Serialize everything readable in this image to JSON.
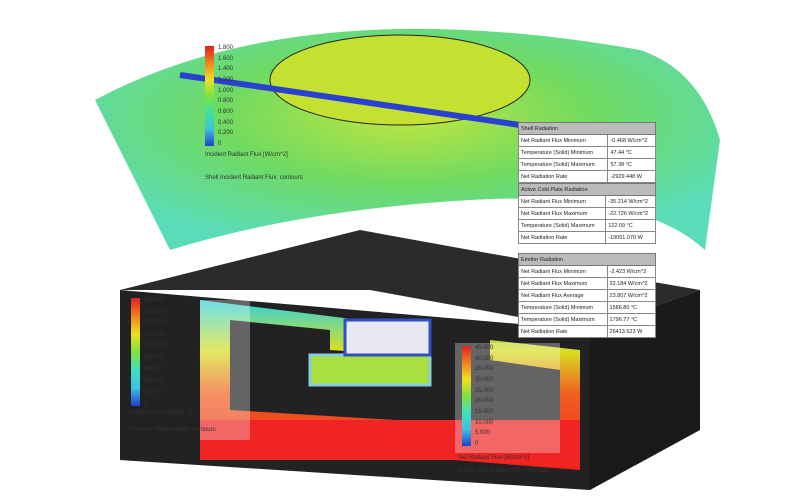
{
  "shell_legend": {
    "ticks": [
      "1.800",
      "1.600",
      "1.400",
      "1.200",
      "1.000",
      "0.800",
      "0.600",
      "0.400",
      "0.200",
      "0"
    ],
    "label": "Incident Radiant Flux [W/cm^2]",
    "caption": "Shell Incident Radiant Flux: contours"
  },
  "temp_legend": {
    "ticks": [
      "1800.00",
      "1600.00",
      "1400.00",
      "1200.00",
      "1000.00",
      "800.00",
      "600.00",
      "400.00",
      "200.00",
      "0"
    ],
    "label": "Temperature (Solid) [°C]",
    "caption": "X-Section Temperature: contours"
  },
  "emitter_legend": {
    "ticks": [
      "45.000",
      "40.000",
      "35.000",
      "30.000",
      "25.000",
      "20.000",
      "15.000",
      "10.000",
      "5.000",
      "0"
    ],
    "label": "Net Radiant Flux [W/cm^2]",
    "caption": "Emitter Net Radiant Flux: contours"
  },
  "tables": [
    {
      "title": "Shell Radiation",
      "rows": [
        [
          "Net Radiant Flux Minimum",
          "-0.468 W/cm^2"
        ],
        [
          "Temperature (Solid) Minimum",
          "47.44 °C"
        ],
        [
          "Temperature (Solid) Maximum",
          "57.38 °C"
        ],
        [
          "Net Radiation Rate",
          "-2929.448 W"
        ]
      ]
    },
    {
      "title": "Active Cold Plate Radiation",
      "rows": [
        [
          "Net Radiant Flux Minimum",
          "-35.214 W/cm^2"
        ],
        [
          "Net Radiant Flux Maximum",
          "-22.726 W/cm^2"
        ],
        [
          "Temperature (Solid) Maximum",
          "122.09 °C"
        ],
        [
          "Net Radiation Rate",
          "-19051.070 W"
        ]
      ]
    },
    {
      "title": "Emitter Radiation",
      "rows": [
        [
          "Net Radiant Flux Minimum",
          "-2.423 W/cm^2"
        ],
        [
          "Net Radiant Flux Maximum",
          "32.184 W/cm^2"
        ],
        [
          "Net Radiant Flux Average",
          "23.807 W/cm^2"
        ],
        [
          "Temperature (Solid) Minimum",
          "1586.80 °C"
        ],
        [
          "Temperature (Solid) Maximum",
          "1796.77 °C"
        ],
        [
          "Net Radiation Rate",
          "26413.523 W"
        ]
      ]
    }
  ]
}
